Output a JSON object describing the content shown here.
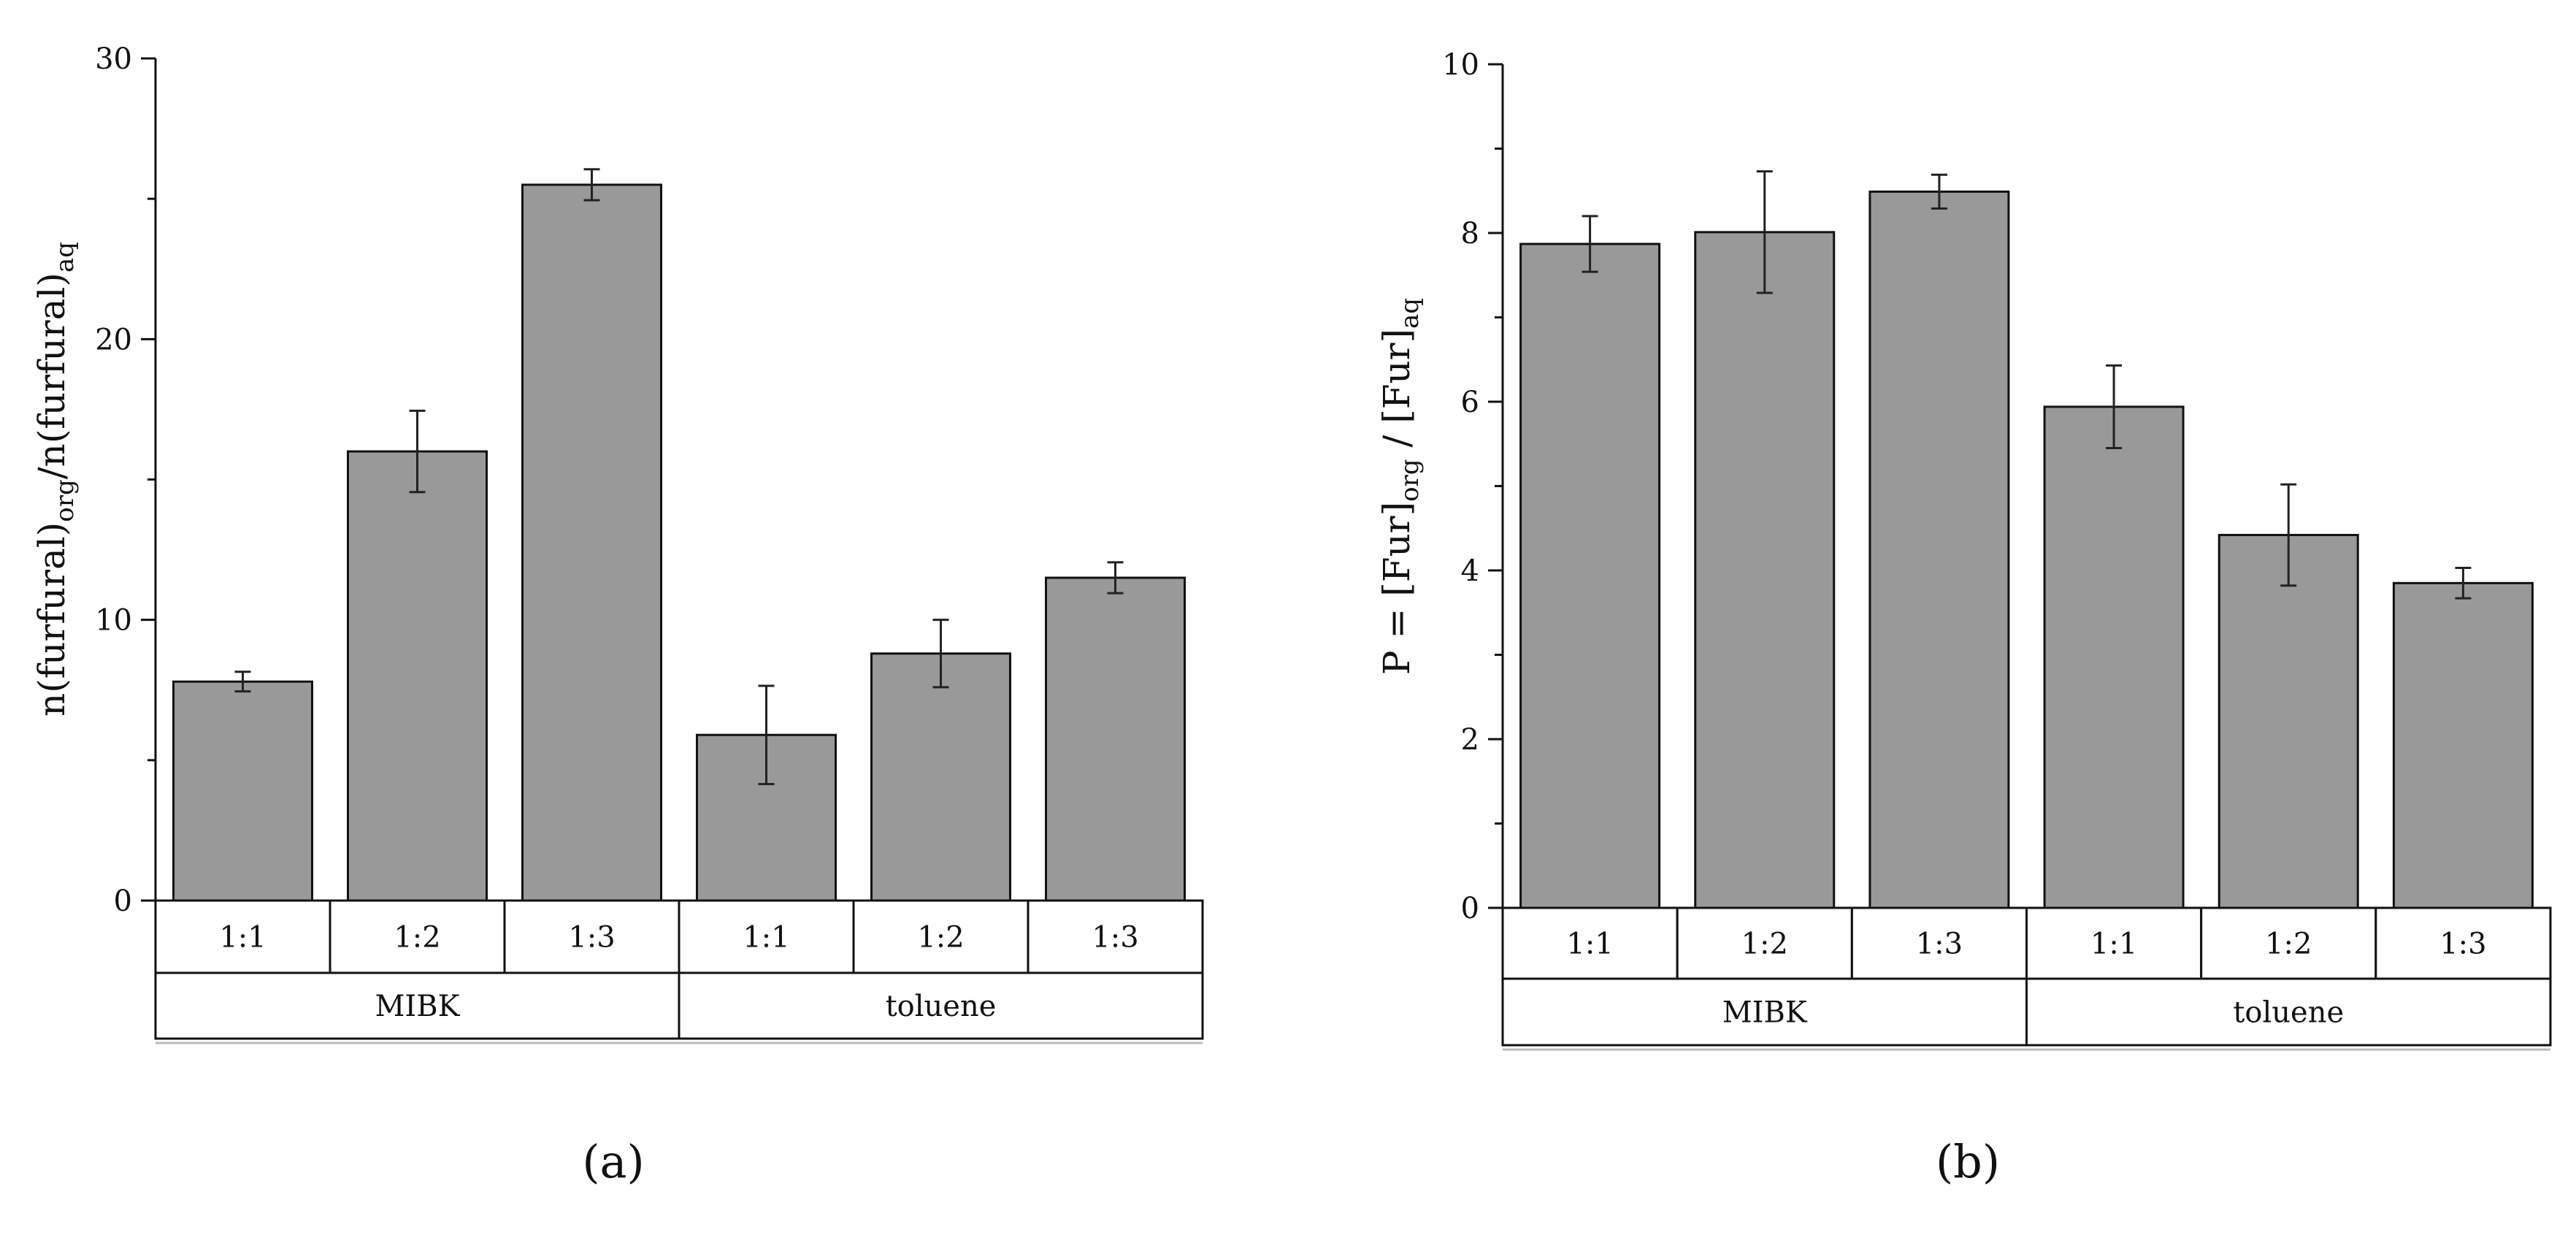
{
  "chart_data": [
    {
      "type": "bar",
      "panel_label": "(a)",
      "ylabel_main": "n(furfural)",
      "ylabel_sub1": "org",
      "ylabel_mid": "/n(furfural)",
      "ylabel_sub2": "aq",
      "ylim": [
        0,
        30
      ],
      "yticks_major": [
        0,
        10,
        20,
        30
      ],
      "yticks_minor": [
        5,
        15,
        25
      ],
      "categories": [
        "1:1",
        "1:2",
        "1:3",
        "1:1",
        "1:2",
        "1:3"
      ],
      "groups": [
        {
          "label": "MIBK",
          "span": [
            0,
            2
          ]
        },
        {
          "label": "toluene",
          "span": [
            3,
            5
          ]
        }
      ],
      "values": [
        7.8,
        16.0,
        25.5,
        5.9,
        8.8,
        11.5
      ],
      "errors": [
        0.35,
        1.45,
        0.55,
        1.75,
        1.2,
        0.55
      ]
    },
    {
      "type": "bar",
      "panel_label": "(b)",
      "ylabel_main": "P = [Fur]",
      "ylabel_sub1": "org",
      "ylabel_mid": " / [Fur]",
      "ylabel_sub2": "aq",
      "ylim": [
        0,
        10
      ],
      "yticks_major": [
        0,
        2,
        4,
        6,
        8,
        10
      ],
      "yticks_minor": [
        1,
        3,
        5,
        7,
        9
      ],
      "categories": [
        "1:1",
        "1:2",
        "1:3",
        "1:1",
        "1:2",
        "1:3"
      ],
      "groups": [
        {
          "label": "MIBK",
          "span": [
            0,
            2
          ]
        },
        {
          "label": "toluene",
          "span": [
            3,
            5
          ]
        }
      ],
      "values": [
        7.87,
        8.01,
        8.49,
        5.94,
        4.42,
        3.85
      ],
      "errors": [
        0.33,
        0.72,
        0.2,
        0.49,
        0.6,
        0.18
      ]
    }
  ]
}
